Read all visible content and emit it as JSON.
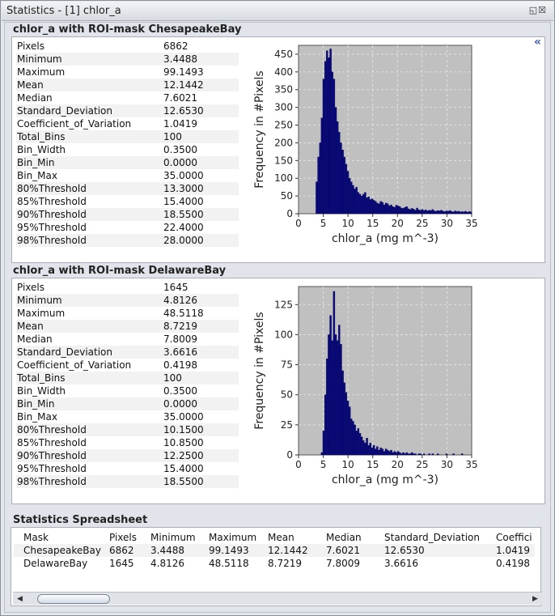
{
  "window": {
    "title": "Statistics - [1] chlor_a",
    "controls": "◱☒"
  },
  "collapse_icon": "«",
  "panels": [
    {
      "title": "chlor_a with ROI-mask ChesapeakeBay",
      "stats": [
        {
          "k": "Pixels",
          "v": "6862"
        },
        {
          "k": "Minimum",
          "v": "3.4488"
        },
        {
          "k": "Maximum",
          "v": "99.1493"
        },
        {
          "k": "Mean",
          "v": "12.1442"
        },
        {
          "k": "Median",
          "v": "7.6021"
        },
        {
          "k": "Standard_Deviation",
          "v": "12.6530"
        },
        {
          "k": "Coefficient_of_Variation",
          "v": "1.0419"
        },
        {
          "k": "Total_Bins",
          "v": "100"
        },
        {
          "k": "Bin_Width",
          "v": "0.3500"
        },
        {
          "k": "Bin_Min",
          "v": "0.0000"
        },
        {
          "k": "Bin_Max",
          "v": "35.0000"
        },
        {
          "k": "80%Threshold",
          "v": "13.3000"
        },
        {
          "k": "85%Threshold",
          "v": "15.4000"
        },
        {
          "k": "90%Threshold",
          "v": "18.5500"
        },
        {
          "k": "95%Threshold",
          "v": "22.4000"
        },
        {
          "k": "98%Threshold",
          "v": "28.0000"
        }
      ]
    },
    {
      "title": "chlor_a with ROI-mask DelawareBay",
      "stats": [
        {
          "k": "Pixels",
          "v": "1645"
        },
        {
          "k": "Minimum",
          "v": "4.8126"
        },
        {
          "k": "Maximum",
          "v": "48.5118"
        },
        {
          "k": "Mean",
          "v": "8.7219"
        },
        {
          "k": "Median",
          "v": "7.8009"
        },
        {
          "k": "Standard_Deviation",
          "v": "3.6616"
        },
        {
          "k": "Coefficient_of_Variation",
          "v": "0.4198"
        },
        {
          "k": "Total_Bins",
          "v": "100"
        },
        {
          "k": "Bin_Width",
          "v": "0.3500"
        },
        {
          "k": "Bin_Min",
          "v": "0.0000"
        },
        {
          "k": "Bin_Max",
          "v": "35.0000"
        },
        {
          "k": "80%Threshold",
          "v": "10.1500"
        },
        {
          "k": "85%Threshold",
          "v": "10.8500"
        },
        {
          "k": "90%Threshold",
          "v": "12.2500"
        },
        {
          "k": "95%Threshold",
          "v": "15.4000"
        },
        {
          "k": "98%Threshold",
          "v": "18.5500"
        }
      ]
    }
  ],
  "spreadsheet": {
    "title": "Statistics Spreadsheet",
    "columns": [
      "Mask",
      "Pixels",
      "Minimum",
      "Maximum",
      "Mean",
      "Median",
      "Standard_Deviation",
      "Coeffici"
    ],
    "rows": [
      [
        "ChesapeakeBay",
        "6862",
        "3.4488",
        "99.1493",
        "12.1442",
        "7.6021",
        "12.6530",
        "1.0419"
      ],
      [
        "DelawareBay",
        "1645",
        "4.8126",
        "48.5118",
        "8.7219",
        "7.8009",
        "3.6616",
        "0.4198"
      ]
    ],
    "scroll_left": "◀",
    "scroll_right": "▶"
  },
  "colors": {
    "bar": "#0a0a7a",
    "plot_bg": "#c0c0c0",
    "grid": "#e8e8e8"
  },
  "chart_data": [
    {
      "type": "bar",
      "xlabel": "chlor_a (mg m^-3)",
      "ylabel": "Frequency in #Pixels",
      "xlim": [
        0,
        35
      ],
      "ylim": [
        0,
        475
      ],
      "xticks": [
        0,
        5,
        10,
        15,
        20,
        25,
        30,
        35
      ],
      "yticks": [
        0,
        50,
        100,
        150,
        200,
        250,
        300,
        350,
        400,
        450
      ],
      "bin_width": 0.35,
      "bin_min": 0,
      "grid": true,
      "values": [
        0,
        0,
        0,
        0,
        0,
        0,
        0,
        0,
        0,
        0,
        90,
        160,
        200,
        270,
        380,
        430,
        460,
        440,
        465,
        400,
        380,
        300,
        260,
        230,
        200,
        180,
        160,
        140,
        120,
        100,
        90,
        80,
        70,
        75,
        60,
        55,
        50,
        55,
        60,
        45,
        48,
        40,
        42,
        38,
        35,
        30,
        28,
        35,
        32,
        25,
        30,
        28,
        22,
        25,
        20,
        18,
        24,
        22,
        20,
        16,
        15,
        18,
        20,
        14,
        12,
        15,
        13,
        10,
        16,
        11,
        10,
        12,
        9,
        11,
        8,
        10,
        9,
        12,
        8,
        7,
        9,
        8,
        10,
        7,
        6,
        8,
        7,
        9,
        6,
        5,
        8,
        6,
        7,
        5,
        6,
        5,
        7,
        4,
        6,
        5
      ]
    },
    {
      "type": "bar",
      "xlabel": "chlor_a (mg m^-3)",
      "ylabel": "Frequency in #Pixels",
      "xlim": [
        0,
        35
      ],
      "ylim": [
        0,
        140
      ],
      "xticks": [
        0,
        5,
        10,
        15,
        20,
        25,
        30,
        35
      ],
      "yticks": [
        0,
        25,
        50,
        75,
        100,
        125
      ],
      "bin_width": 0.35,
      "bin_min": 0,
      "grid": true,
      "values": [
        0,
        0,
        0,
        0,
        0,
        0,
        0,
        0,
        0,
        0,
        0,
        0,
        0,
        2,
        20,
        50,
        80,
        100,
        116,
        95,
        136,
        100,
        95,
        108,
        92,
        70,
        60,
        52,
        45,
        40,
        30,
        28,
        25,
        20,
        22,
        18,
        15,
        12,
        10,
        14,
        8,
        10,
        6,
        8,
        5,
        7,
        4,
        6,
        5,
        3,
        5,
        4,
        3,
        4,
        2,
        3,
        2,
        3,
        2,
        1,
        2,
        1,
        2,
        1,
        1,
        2,
        1,
        1,
        0,
        1,
        1,
        0,
        1,
        0,
        0,
        1,
        0,
        1,
        0,
        0,
        1,
        0,
        0,
        0,
        0,
        1,
        0,
        0,
        0,
        1,
        0,
        0,
        0,
        0,
        1,
        0,
        0,
        0,
        0,
        0
      ]
    }
  ]
}
